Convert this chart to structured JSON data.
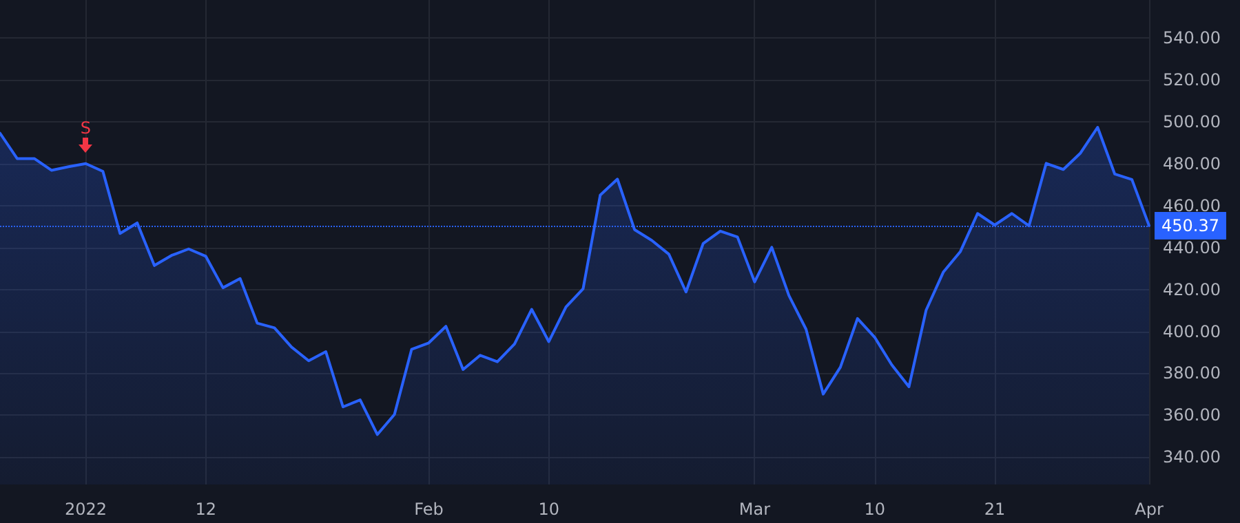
{
  "chart_data": {
    "type": "area",
    "categories": [
      null,
      null,
      null,
      null,
      null,
      "2022",
      null,
      null,
      null,
      null,
      null,
      null,
      "12",
      null,
      null,
      null,
      null,
      null,
      null,
      null,
      null,
      null,
      null,
      null,
      null,
      "Feb",
      null,
      null,
      null,
      null,
      null,
      null,
      "10",
      null,
      null,
      null,
      null,
      null,
      null,
      null,
      null,
      null,
      null,
      null,
      "Mar",
      null,
      null,
      null,
      null,
      null,
      null,
      "10",
      null,
      null,
      null,
      null,
      null,
      null,
      "21",
      null,
      null,
      null,
      null,
      null,
      null,
      null,
      null,
      "Apr"
    ],
    "series": [
      {
        "color": "#2962ff",
        "values": [
          494.5,
          482.4,
          482.4,
          476.8,
          478.5,
          480.0,
          476.3,
          446.7,
          451.7,
          431.4,
          436.2,
          439.3,
          435.8,
          420.8,
          425.2,
          403.9,
          401.7,
          392.5,
          386.0,
          390.3,
          364.0,
          367.3,
          350.8,
          360.4,
          391.4,
          394.5,
          402.4,
          381.8,
          388.6,
          385.5,
          394.0,
          410.5,
          395.1,
          411.6,
          420.3,
          465.0,
          472.6,
          448.5,
          443.4,
          436.8,
          418.8,
          441.9,
          447.8,
          445.0,
          423.6,
          440.1,
          417.1,
          401.0,
          370.1,
          382.9,
          406.1,
          397.2,
          384.0,
          373.6,
          410.1,
          428.2,
          438.1,
          456.2,
          450.7,
          456.2,
          450.3,
          480.1,
          477.2,
          485.0,
          497.3,
          475.0,
          472.4,
          450.4
        ]
      }
    ],
    "ylim": [
      327,
      558
    ],
    "yticks": [
      {
        "value": 340,
        "label": "340.00"
      },
      {
        "value": 360,
        "label": "360.00"
      },
      {
        "value": 380,
        "label": "380.00"
      },
      {
        "value": 400,
        "label": "400.00"
      },
      {
        "value": 420,
        "label": "420.00"
      },
      {
        "value": 440,
        "label": "440.00"
      },
      {
        "value": 460,
        "label": "460.00"
      },
      {
        "value": 480,
        "label": "480.00"
      },
      {
        "value": 500,
        "label": "500.00"
      },
      {
        "value": 520,
        "label": "520.00"
      },
      {
        "value": 540,
        "label": "540.00"
      }
    ],
    "ref_lines": [
      {
        "axis": "y",
        "value": 450.37,
        "label": "450.37",
        "color": "#2962ff",
        "line_style": "dotted"
      }
    ],
    "annotations": [
      {
        "text": "S",
        "x": "2022",
        "y": 480.0
      }
    ],
    "grid": true,
    "marker": "none",
    "line_style": "solid"
  }
}
